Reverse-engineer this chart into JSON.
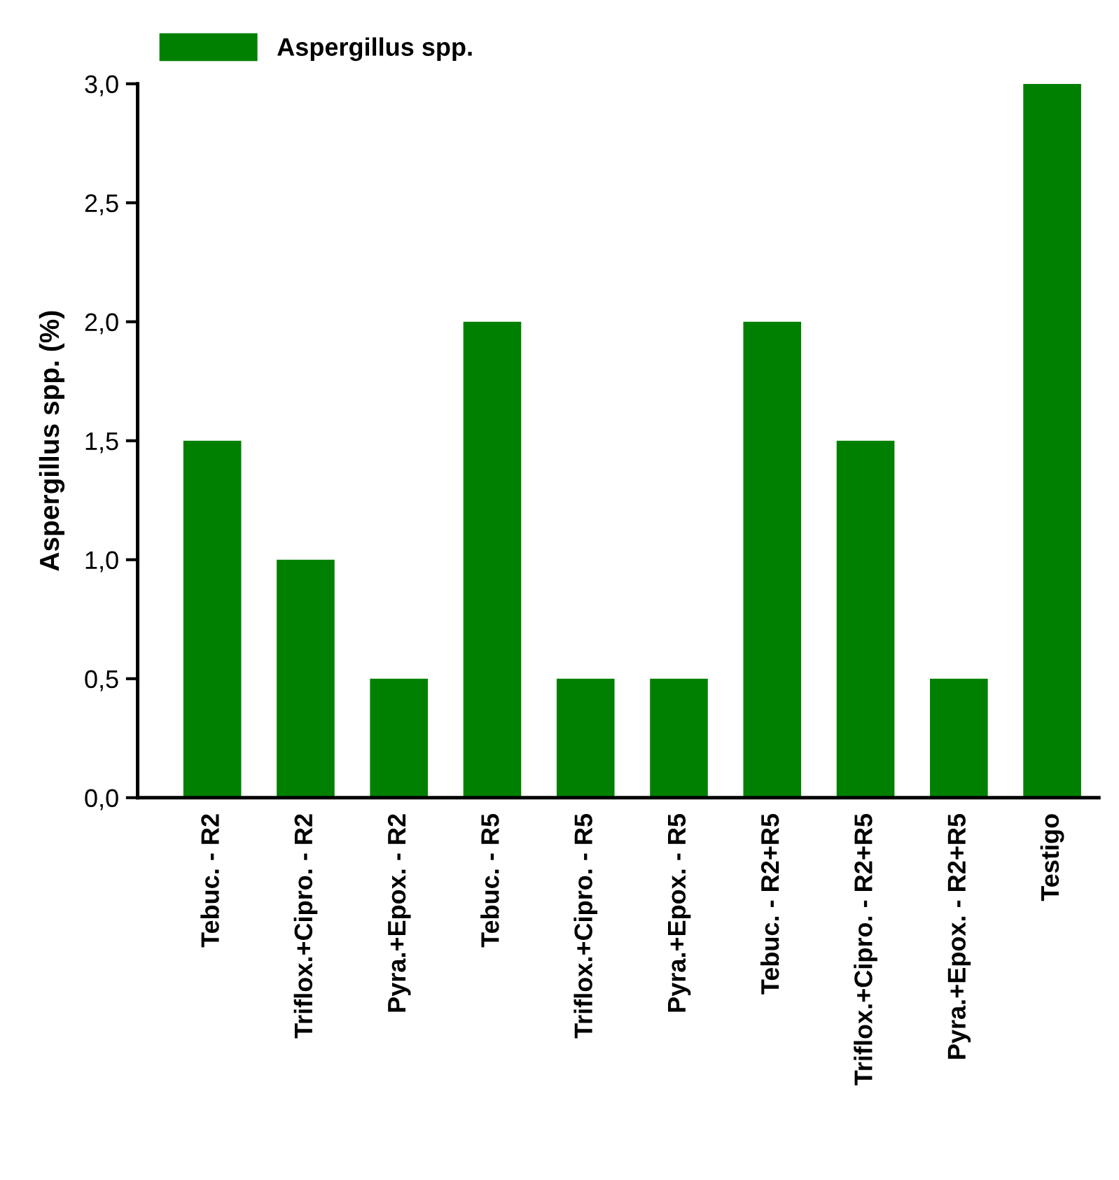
{
  "chart_data": {
    "type": "bar",
    "ylabel": "Aspergillus spp. (%)",
    "categories": [
      "Tebuc. - R2",
      "Triflox.+Cipro. - R2",
      "Pyra.+Epox. - R2",
      "Tebuc. - R5",
      "Triflox.+Cipro. - R5",
      "Pyra.+Epox. - R5",
      "Tebuc. - R2+R5",
      "Triflox.+Cipro. - R2+R5",
      "Pyra.+Epox. - R2+R5",
      "Testigo"
    ],
    "series": [
      {
        "name": "Aspergillus spp.",
        "color": "#008000",
        "values": [
          1.5,
          1.0,
          0.5,
          2.0,
          0.5,
          0.5,
          2.0,
          1.5,
          0.5,
          3.0
        ]
      }
    ],
    "ylim": [
      0,
      3
    ],
    "yticks": [
      {
        "value": 0,
        "label": "0,0"
      },
      {
        "value": 0.5,
        "label": "0,5"
      },
      {
        "value": 1,
        "label": "1,0"
      },
      {
        "value": 1.5,
        "label": "1,5"
      },
      {
        "value": 2,
        "label": "2,0"
      },
      {
        "value": 2.5,
        "label": "2,5"
      },
      {
        "value": 3,
        "label": "3,0"
      }
    ],
    "grid": false,
    "legend": "top left"
  }
}
